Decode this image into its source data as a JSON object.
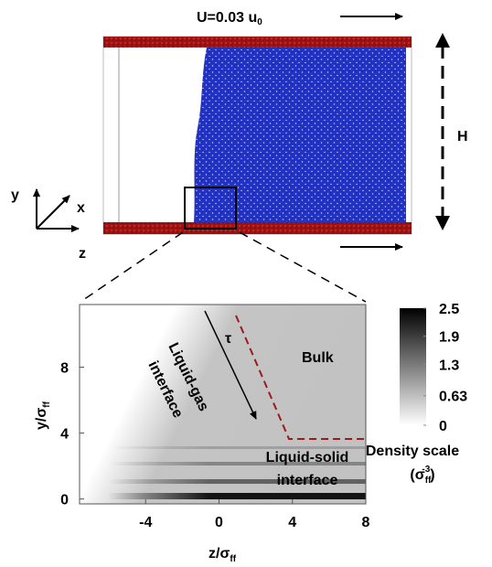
{
  "figure": {
    "velocity_label": {
      "main": "U=0.03 u",
      "sub": "0"
    },
    "height_label": "H",
    "axis_labels": {
      "y": "y",
      "x": "x",
      "z": "z"
    }
  },
  "chart_data": {
    "type": "density-map",
    "xlabel": {
      "main": "z/σ",
      "sub": "ff"
    },
    "ylabel": {
      "main": "y/σ",
      "sub": "ff"
    },
    "xlim": [
      -7.6,
      8
    ],
    "ylim": [
      -0.3,
      11.8
    ],
    "xticks": [
      -4,
      0,
      4,
      8
    ],
    "yticks": [
      0,
      4,
      8
    ],
    "annotations": {
      "tau": "τ",
      "liquid_gas": [
        "Liquid-gas",
        "interface"
      ],
      "bulk": "Bulk",
      "liquid_solid": [
        "Liquid-solid",
        "interface"
      ]
    },
    "colorbar": {
      "title": "Density scale",
      "unit": {
        "open": "(σ",
        "sub": "ff",
        "sup": "-3",
        "close": ")"
      },
      "lim": [
        0,
        2.5
      ],
      "ticks": [
        0,
        0.63,
        1.3,
        1.9,
        2.5
      ],
      "cmap": [
        "#ffffff",
        "#000000"
      ]
    }
  }
}
